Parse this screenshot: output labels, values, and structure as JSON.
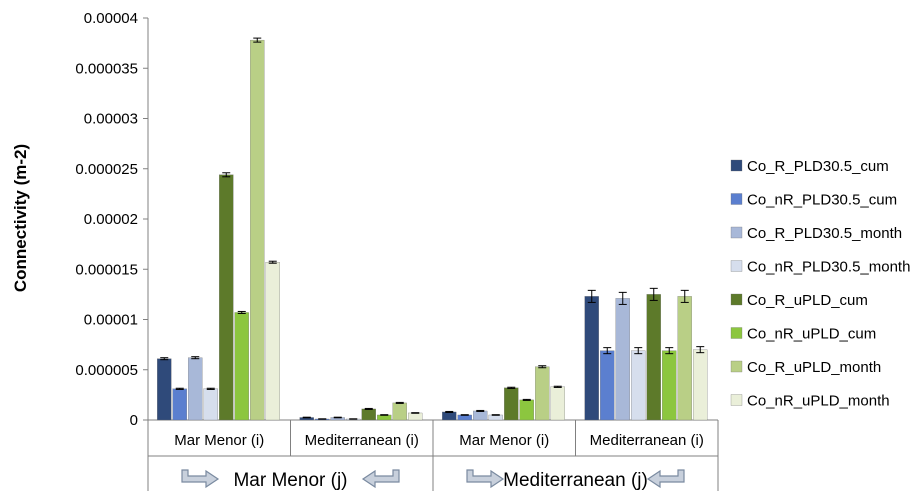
{
  "chart_data": {
    "type": "bar",
    "ylabel": "Connectivity (m-2)",
    "ylim": [
      0,
      4e-05
    ],
    "yticks": [
      "0",
      "0.000005",
      "0.00001",
      "0.000015",
      "0.00002",
      "0.000025",
      "0.00003",
      "0.000035",
      "0.00004"
    ],
    "categories": [
      "Mar Menor (i)",
      "Mediterranean (i)",
      "Mar Menor (i)",
      "Mediterranean (i)"
    ],
    "groups": [
      {
        "label": "Mar Menor (j)",
        "categories": [
          0,
          1
        ]
      },
      {
        "label": "Mediterranean (j)",
        "categories": [
          2,
          3
        ]
      }
    ],
    "series": [
      {
        "name": "Co_R_PLD30.5_cum",
        "color": "#2f4a7a",
        "values": [
          6.1e-06,
          2.5e-07,
          8e-07,
          1.23e-05
        ],
        "errors": [
          1e-07,
          3e-08,
          5e-08,
          6e-07
        ]
      },
      {
        "name": "Co_nR_PLD30.5_cum",
        "color": "#5b7fcf",
        "values": [
          3.1e-06,
          1e-07,
          5e-07,
          6.9e-06
        ],
        "errors": [
          6e-08,
          2e-08,
          3e-08,
          3e-07
        ]
      },
      {
        "name": "Co_R_PLD30.5_month",
        "color": "#a8b8d8",
        "values": [
          6.2e-06,
          2.5e-07,
          9e-07,
          1.21e-05
        ],
        "errors": [
          1e-07,
          3e-08,
          5e-08,
          6e-07
        ]
      },
      {
        "name": "Co_nR_PLD30.5_month",
        "color": "#d6deed",
        "values": [
          3.1e-06,
          1e-07,
          5e-07,
          6.9e-06
        ],
        "errors": [
          6e-08,
          2e-08,
          3e-08,
          3e-07
        ]
      },
      {
        "name": "Co_R_uPLD_cum",
        "color": "#5d7a2a",
        "values": [
          2.44e-05,
          1.1e-06,
          3.2e-06,
          1.25e-05
        ],
        "errors": [
          2e-07,
          5e-08,
          6e-08,
          6e-07
        ]
      },
      {
        "name": "Co_nR_uPLD_cum",
        "color": "#8cc63f",
        "values": [
          1.07e-05,
          5e-07,
          2e-06,
          6.9e-06
        ],
        "errors": [
          1e-07,
          3e-08,
          5e-08,
          3e-07
        ]
      },
      {
        "name": "Co_R_uPLD_month",
        "color": "#b9cf86",
        "values": [
          3.78e-05,
          1.7e-06,
          5.3e-06,
          1.23e-05
        ],
        "errors": [
          2e-07,
          5e-08,
          1e-07,
          6e-07
        ]
      },
      {
        "name": "Co_nR_uPLD_month",
        "color": "#eaefd9",
        "values": [
          1.57e-05,
          7e-07,
          3.3e-06,
          7e-06
        ],
        "errors": [
          1e-07,
          3e-08,
          6e-08,
          3e-07
        ]
      }
    ],
    "legend": "right",
    "grid": false
  }
}
